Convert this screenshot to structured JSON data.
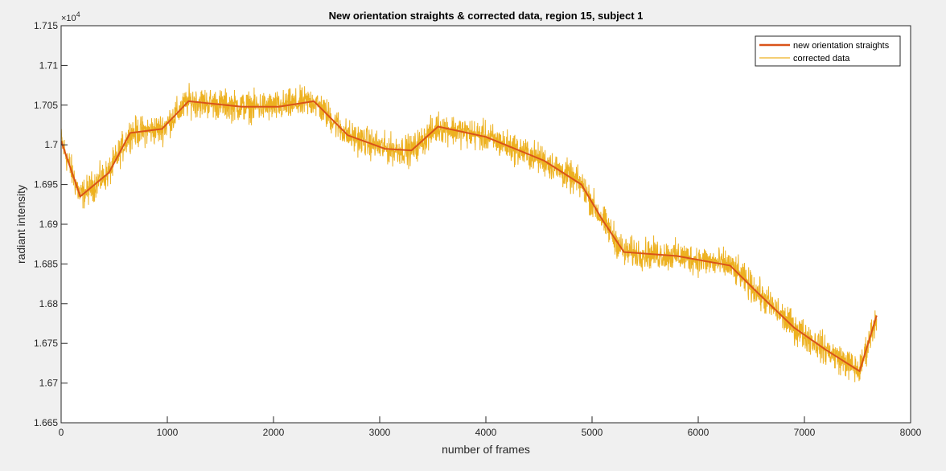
{
  "chart_data": {
    "type": "line",
    "title": "New orientation straights & corrected data, region 15, subject 1",
    "xlabel": "number of frames",
    "ylabel": "radiant intensity",
    "xlim": [
      0,
      8000
    ],
    "ylim": [
      1.665,
      1.715
    ],
    "y_exponent_label": "×10",
    "y_exponent_power": "4",
    "x_ticks": [
      0,
      1000,
      2000,
      3000,
      4000,
      5000,
      6000,
      7000,
      8000
    ],
    "x_tick_labels": [
      "0",
      "1000",
      "2000",
      "3000",
      "4000",
      "5000",
      "6000",
      "7000",
      "8000"
    ],
    "y_ticks": [
      1.665,
      1.67,
      1.675,
      1.68,
      1.685,
      1.69,
      1.695,
      1.7,
      1.705,
      1.71,
      1.715
    ],
    "y_tick_labels": [
      "1.665",
      "1.67",
      "1.675",
      "1.68",
      "1.685",
      "1.69",
      "1.695",
      "1.7",
      "1.705",
      "1.71",
      "1.715"
    ],
    "grid": false,
    "legend_position": "top-right",
    "series": [
      {
        "name": "new orientation straights",
        "color": "#d95319",
        "x": [
          0,
          180,
          450,
          650,
          950,
          1200,
          1700,
          2050,
          2380,
          2700,
          3050,
          3300,
          3550,
          4000,
          4550,
          4900,
          5100,
          5300,
          5800,
          6300,
          6550,
          6900,
          7200,
          7520,
          7680
        ],
        "y": [
          1.7005,
          1.6935,
          1.6965,
          1.7015,
          1.702,
          1.7055,
          1.7048,
          1.7048,
          1.7055,
          1.7012,
          1.6995,
          1.6993,
          1.7023,
          1.701,
          1.698,
          1.695,
          1.6905,
          1.6865,
          1.686,
          1.6848,
          1.6815,
          1.677,
          1.6742,
          1.6715,
          1.6785
        ]
      },
      {
        "name": "corrected data",
        "color": "#edb120",
        "noise_amplitude": 0.0028,
        "follows": "new orientation straights"
      }
    ]
  }
}
